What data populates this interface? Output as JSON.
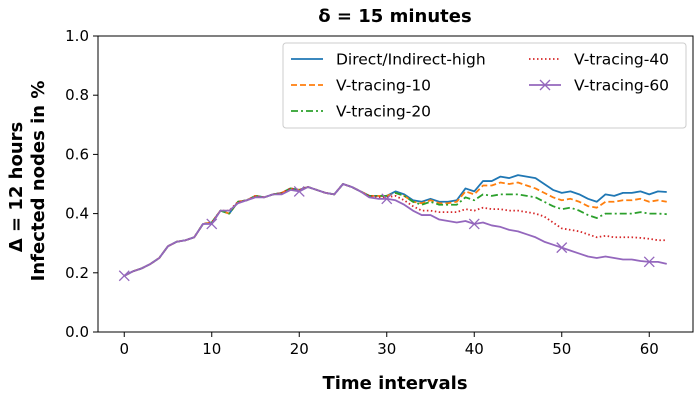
{
  "chart_data": {
    "type": "line",
    "title": "δ = 15 minutes",
    "xlabel": "Time intervals",
    "ylabel_lines": [
      "Δ = 12 hours",
      "Infected nodes in %"
    ],
    "xlim": [
      -3,
      65
    ],
    "ylim": [
      0,
      1
    ],
    "xticks": [
      0,
      10,
      20,
      30,
      40,
      50,
      60
    ],
    "yticks": [
      0.0,
      0.2,
      0.4,
      0.6,
      0.8,
      1.0
    ],
    "ytick_labels": [
      "0.0",
      "0.2",
      "0.4",
      "0.6",
      "0.8",
      "1.0"
    ],
    "grid": false,
    "legend_position": "top-right",
    "x": [
      0,
      1,
      2,
      3,
      4,
      5,
      6,
      7,
      8,
      9,
      10,
      11,
      12,
      13,
      14,
      15,
      16,
      17,
      18,
      19,
      20,
      21,
      22,
      23,
      24,
      25,
      26,
      27,
      28,
      29,
      30,
      31,
      32,
      33,
      34,
      35,
      36,
      37,
      38,
      39,
      40,
      41,
      42,
      43,
      44,
      45,
      46,
      47,
      48,
      49,
      50,
      51,
      52,
      53,
      54,
      55,
      56,
      57,
      58,
      59,
      60,
      61,
      62
    ],
    "series": [
      {
        "name": "Direct/Indirect-high",
        "color": "#1f77b4",
        "dash": "solid",
        "marker": "none",
        "values": [
          0.19,
          0.205,
          0.215,
          0.23,
          0.25,
          0.29,
          0.305,
          0.31,
          0.32,
          0.365,
          0.37,
          0.41,
          0.4,
          0.44,
          0.445,
          0.46,
          0.455,
          0.465,
          0.47,
          0.485,
          0.48,
          0.49,
          0.48,
          0.47,
          0.465,
          0.5,
          0.49,
          0.475,
          0.46,
          0.46,
          0.46,
          0.475,
          0.465,
          0.445,
          0.44,
          0.45,
          0.44,
          0.44,
          0.445,
          0.485,
          0.475,
          0.51,
          0.51,
          0.525,
          0.52,
          0.53,
          0.525,
          0.52,
          0.5,
          0.48,
          0.47,
          0.475,
          0.465,
          0.45,
          0.44,
          0.465,
          0.46,
          0.47,
          0.47,
          0.475,
          0.465,
          0.475,
          0.473
        ]
      },
      {
        "name": "V-tracing-10",
        "color": "#ff7f0e",
        "dash": "dashed",
        "marker": "none",
        "values": [
          0.19,
          0.205,
          0.215,
          0.23,
          0.25,
          0.29,
          0.305,
          0.31,
          0.32,
          0.365,
          0.37,
          0.41,
          0.4,
          0.44,
          0.445,
          0.46,
          0.455,
          0.465,
          0.47,
          0.485,
          0.48,
          0.49,
          0.48,
          0.47,
          0.465,
          0.5,
          0.49,
          0.475,
          0.46,
          0.46,
          0.46,
          0.47,
          0.46,
          0.44,
          0.435,
          0.445,
          0.435,
          0.435,
          0.44,
          0.475,
          0.465,
          0.495,
          0.495,
          0.505,
          0.5,
          0.505,
          0.495,
          0.485,
          0.47,
          0.455,
          0.445,
          0.45,
          0.44,
          0.425,
          0.42,
          0.44,
          0.44,
          0.445,
          0.445,
          0.45,
          0.44,
          0.445,
          0.44
        ]
      },
      {
        "name": "V-tracing-20",
        "color": "#2ca02c",
        "dash": "dashdot",
        "marker": "none",
        "values": [
          0.19,
          0.205,
          0.215,
          0.23,
          0.25,
          0.29,
          0.305,
          0.31,
          0.32,
          0.365,
          0.37,
          0.41,
          0.4,
          0.44,
          0.445,
          0.46,
          0.455,
          0.465,
          0.47,
          0.485,
          0.48,
          0.49,
          0.48,
          0.47,
          0.465,
          0.5,
          0.49,
          0.475,
          0.46,
          0.46,
          0.46,
          0.47,
          0.46,
          0.44,
          0.43,
          0.44,
          0.43,
          0.43,
          0.43,
          0.455,
          0.445,
          0.465,
          0.46,
          0.465,
          0.465,
          0.465,
          0.46,
          0.455,
          0.44,
          0.425,
          0.415,
          0.42,
          0.41,
          0.395,
          0.385,
          0.4,
          0.4,
          0.4,
          0.4,
          0.405,
          0.4,
          0.4,
          0.398
        ]
      },
      {
        "name": "V-tracing-40",
        "color": "#d62728",
        "dash": "dotted",
        "marker": "none",
        "values": [
          0.19,
          0.205,
          0.215,
          0.23,
          0.25,
          0.29,
          0.305,
          0.31,
          0.32,
          0.365,
          0.37,
          0.41,
          0.41,
          0.44,
          0.445,
          0.46,
          0.455,
          0.465,
          0.47,
          0.485,
          0.48,
          0.49,
          0.48,
          0.47,
          0.465,
          0.5,
          0.49,
          0.475,
          0.46,
          0.455,
          0.455,
          0.46,
          0.445,
          0.425,
          0.41,
          0.41,
          0.405,
          0.405,
          0.405,
          0.415,
          0.41,
          0.42,
          0.415,
          0.415,
          0.41,
          0.41,
          0.405,
          0.4,
          0.39,
          0.37,
          0.35,
          0.345,
          0.34,
          0.33,
          0.32,
          0.325,
          0.32,
          0.32,
          0.32,
          0.318,
          0.315,
          0.31,
          0.31
        ]
      },
      {
        "name": "V-tracing-60",
        "color": "#9467bd",
        "dash": "solid",
        "marker": "x",
        "marker_every": 10,
        "values": [
          0.19,
          0.205,
          0.215,
          0.23,
          0.25,
          0.29,
          0.305,
          0.31,
          0.32,
          0.365,
          0.365,
          0.41,
          0.41,
          0.435,
          0.445,
          0.455,
          0.455,
          0.465,
          0.465,
          0.48,
          0.475,
          0.49,
          0.48,
          0.47,
          0.465,
          0.5,
          0.49,
          0.475,
          0.455,
          0.45,
          0.45,
          0.445,
          0.43,
          0.41,
          0.395,
          0.395,
          0.38,
          0.375,
          0.37,
          0.375,
          0.365,
          0.37,
          0.36,
          0.355,
          0.345,
          0.34,
          0.33,
          0.32,
          0.305,
          0.295,
          0.285,
          0.275,
          0.265,
          0.255,
          0.25,
          0.255,
          0.25,
          0.245,
          0.245,
          0.24,
          0.237,
          0.237,
          0.23
        ]
      }
    ]
  }
}
